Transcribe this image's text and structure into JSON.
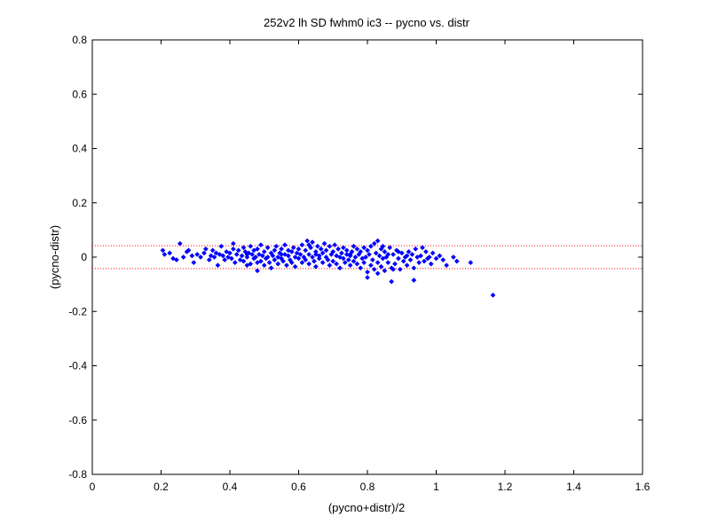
{
  "chart_data": {
    "type": "scatter",
    "title": "252v2 lh SD fwhm0 ic3 -- pycno vs. distr",
    "xlabel": "(pycno+distr)/2",
    "ylabel": "(pycno-distr)",
    "xlim": [
      0,
      1.6
    ],
    "ylim": [
      -0.8,
      0.8
    ],
    "xticks": [
      "0",
      "0.2",
      "0.4",
      "0.6",
      "0.8",
      "1",
      "1.2",
      "1.4",
      "1.6"
    ],
    "yticks": [
      "-0.8",
      "-0.6",
      "-0.4",
      "-0.2",
      "0",
      "0.2",
      "0.4",
      "0.6",
      "0.8"
    ],
    "grid": false,
    "colors": {
      "points": "#0000ff",
      "reference_lines": "#ff0000",
      "axes": "#000000"
    },
    "reference_lines": [
      {
        "y": 0.042,
        "style": "dotted"
      },
      {
        "y": -0.042,
        "style": "dotted"
      }
    ],
    "series": [
      {
        "marker": "diamond",
        "points": [
          [
            0.205,
            0.025
          ],
          [
            0.21,
            0.01
          ],
          [
            0.225,
            0.015
          ],
          [
            0.235,
            -0.005
          ],
          [
            0.245,
            -0.01
          ],
          [
            0.255,
            0.05
          ],
          [
            0.265,
            0.0
          ],
          [
            0.275,
            0.02
          ],
          [
            0.28,
            0.025
          ],
          [
            0.29,
            0.005
          ],
          [
            0.295,
            -0.02
          ],
          [
            0.305,
            0.01
          ],
          [
            0.315,
            0.0
          ],
          [
            0.325,
            0.015
          ],
          [
            0.33,
            0.03
          ],
          [
            0.34,
            -0.01
          ],
          [
            0.345,
            0.005
          ],
          [
            0.35,
            0.025
          ],
          [
            0.355,
            0.0
          ],
          [
            0.36,
            0.015
          ],
          [
            0.365,
            -0.03
          ],
          [
            0.37,
            0.01
          ],
          [
            0.375,
            0.04
          ],
          [
            0.38,
            0.005
          ],
          [
            0.385,
            -0.01
          ],
          [
            0.39,
            0.02
          ],
          [
            0.395,
            0.0
          ],
          [
            0.4,
            0.015
          ],
          [
            0.405,
            -0.005
          ],
          [
            0.41,
            0.03
          ],
          [
            0.41,
            0.05
          ],
          [
            0.415,
            -0.02
          ],
          [
            0.42,
            0.01
          ],
          [
            0.425,
            0.025
          ],
          [
            0.43,
            -0.01
          ],
          [
            0.435,
            0.005
          ],
          [
            0.44,
            0.035
          ],
          [
            0.44,
            -0.015
          ],
          [
            0.445,
            0.02
          ],
          [
            0.45,
            -0.03
          ],
          [
            0.45,
            0.0
          ],
          [
            0.455,
            0.015
          ],
          [
            0.46,
            0.04
          ],
          [
            0.46,
            -0.025
          ],
          [
            0.465,
            0.01
          ],
          [
            0.47,
            -0.005
          ],
          [
            0.47,
            0.025
          ],
          [
            0.475,
            0.0
          ],
          [
            0.48,
            -0.02
          ],
          [
            0.48,
            0.03
          ],
          [
            0.485,
            0.01
          ],
          [
            0.49,
            -0.015
          ],
          [
            0.49,
            0.045
          ],
          [
            0.495,
            0.005
          ],
          [
            0.5,
            -0.03
          ],
          [
            0.5,
            0.02
          ],
          [
            0.505,
            -0.005
          ],
          [
            0.51,
            0.035
          ],
          [
            0.51,
            0.0
          ],
          [
            0.515,
            -0.02
          ],
          [
            0.52,
            0.015
          ],
          [
            0.52,
            -0.04
          ],
          [
            0.525,
            0.005
          ],
          [
            0.53,
            0.025
          ],
          [
            0.53,
            -0.01
          ],
          [
            0.535,
            0.04
          ],
          [
            0.54,
            0.0
          ],
          [
            0.54,
            -0.025
          ],
          [
            0.545,
            0.015
          ],
          [
            0.55,
            -0.005
          ],
          [
            0.55,
            0.03
          ],
          [
            0.555,
            -0.015
          ],
          [
            0.56,
            0.01
          ],
          [
            0.56,
            0.045
          ],
          [
            0.565,
            -0.03
          ],
          [
            0.57,
            0.005
          ],
          [
            0.57,
            0.025
          ],
          [
            0.575,
            -0.01
          ],
          [
            0.58,
            0.02
          ],
          [
            0.58,
            -0.02
          ],
          [
            0.585,
            0.035
          ],
          [
            0.59,
            0.0
          ],
          [
            0.59,
            -0.035
          ],
          [
            0.595,
            0.015
          ],
          [
            0.6,
            -0.005
          ],
          [
            0.6,
            0.03
          ],
          [
            0.605,
            0.01
          ],
          [
            0.61,
            -0.02
          ],
          [
            0.61,
            0.045
          ],
          [
            0.615,
            0.0
          ],
          [
            0.62,
            0.025
          ],
          [
            0.62,
            -0.01
          ],
          [
            0.625,
            0.06
          ],
          [
            0.63,
            0.01
          ],
          [
            0.63,
            -0.025
          ],
          [
            0.635,
            0.035
          ],
          [
            0.64,
            0.0
          ],
          [
            0.64,
            0.055
          ],
          [
            0.645,
            -0.015
          ],
          [
            0.65,
            0.02
          ],
          [
            0.65,
            -0.035
          ],
          [
            0.655,
            0.04
          ],
          [
            0.66,
            0.005
          ],
          [
            0.66,
            -0.005
          ],
          [
            0.665,
            0.03
          ],
          [
            0.67,
            0.015
          ],
          [
            0.67,
            -0.02
          ],
          [
            0.675,
            0.05
          ],
          [
            0.68,
            0.0
          ],
          [
            0.68,
            0.025
          ],
          [
            0.685,
            -0.01
          ],
          [
            0.69,
            0.04
          ],
          [
            0.69,
            -0.03
          ],
          [
            0.695,
            0.01
          ],
          [
            0.7,
            0.02
          ],
          [
            0.7,
            -0.015
          ],
          [
            0.705,
            0.045
          ],
          [
            0.71,
            0.005
          ],
          [
            0.71,
            -0.025
          ],
          [
            0.715,
            0.03
          ],
          [
            0.72,
            0.0
          ],
          [
            0.72,
            -0.04
          ],
          [
            0.725,
            0.015
          ],
          [
            0.73,
            -0.005
          ],
          [
            0.73,
            0.035
          ],
          [
            0.735,
            -0.02
          ],
          [
            0.74,
            0.01
          ],
          [
            0.74,
            0.025
          ],
          [
            0.745,
            -0.01
          ],
          [
            0.75,
            0.005
          ],
          [
            0.75,
            -0.03
          ],
          [
            0.755,
            0.02
          ],
          [
            0.76,
            -0.015
          ],
          [
            0.76,
            0.04
          ],
          [
            0.765,
            0.0
          ],
          [
            0.77,
            -0.025
          ],
          [
            0.77,
            0.03
          ],
          [
            0.775,
            0.01
          ],
          [
            0.78,
            -0.04
          ],
          [
            0.78,
            0.02
          ],
          [
            0.785,
            -0.005
          ],
          [
            0.79,
            0.035
          ],
          [
            0.79,
            -0.02
          ],
          [
            0.795,
            0.0
          ],
          [
            0.8,
            0.025
          ],
          [
            0.8,
            -0.055
          ],
          [
            0.805,
            0.01
          ],
          [
            0.81,
            -0.03
          ],
          [
            0.81,
            0.04
          ],
          [
            0.815,
            -0.01
          ],
          [
            0.82,
            0.05
          ],
          [
            0.82,
            -0.045
          ],
          [
            0.825,
            0.015
          ],
          [
            0.83,
            -0.02
          ],
          [
            0.83,
            0.06
          ],
          [
            0.835,
            0.005
          ],
          [
            0.84,
            -0.035
          ],
          [
            0.84,
            0.03
          ],
          [
            0.845,
            -0.005
          ],
          [
            0.85,
            0.02
          ],
          [
            0.85,
            -0.05
          ],
          [
            0.855,
            0.0
          ],
          [
            0.86,
            -0.02
          ],
          [
            0.865,
            0.035
          ],
          [
            0.87,
            -0.04
          ],
          [
            0.875,
            0.01
          ],
          [
            0.88,
            -0.025
          ],
          [
            0.885,
            0.025
          ],
          [
            0.89,
            -0.005
          ],
          [
            0.895,
            -0.045
          ],
          [
            0.9,
            0.015
          ],
          [
            0.905,
            -0.015
          ],
          [
            0.91,
            0.0
          ],
          [
            0.915,
            -0.03
          ],
          [
            0.92,
            0.02
          ],
          [
            0.925,
            -0.01
          ],
          [
            0.93,
            0.01
          ],
          [
            0.935,
            -0.04
          ],
          [
            0.94,
            0.03
          ],
          [
            0.945,
            0.0
          ],
          [
            0.95,
            -0.02
          ],
          [
            0.955,
            0.005
          ],
          [
            0.96,
            0.035
          ],
          [
            0.965,
            -0.015
          ],
          [
            0.97,
            0.02
          ],
          [
            0.975,
            -0.005
          ],
          [
            0.98,
            0.0
          ],
          [
            0.985,
            -0.025
          ],
          [
            0.99,
            0.015
          ],
          [
            1.0,
            -0.005
          ],
          [
            1.01,
            0.005
          ],
          [
            1.02,
            -0.01
          ],
          [
            1.03,
            -0.03
          ],
          [
            1.05,
            0.0
          ],
          [
            1.06,
            -0.015
          ],
          [
            1.1,
            -0.02
          ],
          [
            1.165,
            -0.14
          ],
          [
            0.845,
            0.04
          ],
          [
            0.86,
            0.01
          ],
          [
            0.875,
            -0.045
          ],
          [
            0.89,
            0.02
          ],
          [
            0.915,
            0.005
          ],
          [
            0.45,
            0.01
          ],
          [
            0.55,
            0.01
          ],
          [
            0.65,
            0.01
          ],
          [
            0.75,
            0.01
          ],
          [
            0.63,
            0.045
          ],
          [
            0.83,
            -0.06
          ],
          [
            0.87,
            -0.09
          ],
          [
            0.8,
            -0.075
          ],
          [
            0.935,
            -0.085
          ],
          [
            0.48,
            -0.05
          ]
        ]
      }
    ]
  }
}
